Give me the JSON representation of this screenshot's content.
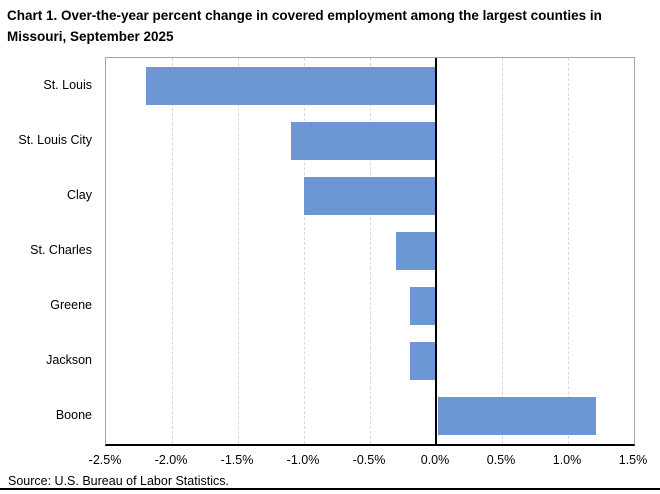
{
  "title": "Chart 1. Over-the-year percent change in covered employment among the largest counties in Missouri, September 2025",
  "source": "Source: U.S. Bureau of Labor Statistics.",
  "chart_data": {
    "type": "bar",
    "orientation": "horizontal",
    "title": "Chart 1. Over-the-year percent change in covered employment among the largest counties in Missouri, September 2025",
    "categories": [
      "St. Louis",
      "St. Louis City",
      "Clay",
      "St. Charles",
      "Greene",
      "Jackson",
      "Boone"
    ],
    "values": [
      -2.2,
      -1.1,
      -1.0,
      -0.3,
      -0.2,
      -0.2,
      1.2
    ],
    "xlabel": "",
    "ylabel": "",
    "xlim": [
      -2.5,
      1.5
    ],
    "x_tick_values": [
      -2.5,
      -2.0,
      -1.5,
      -1.0,
      -0.5,
      0.0,
      0.5,
      1.0,
      1.5
    ],
    "x_tick_labels": [
      "-2.5%",
      "-2.0%",
      "-1.5%",
      "-1.0%",
      "-0.5%",
      "0.0%",
      "0.5%",
      "1.0%",
      "1.5%"
    ],
    "grid": "vertical-dashed",
    "legend": "none",
    "colors": {
      "bar": "#6d96d4",
      "gridline": "#d9d9d9",
      "plot_border": "#a6a6a6",
      "axis": "#000000"
    }
  }
}
